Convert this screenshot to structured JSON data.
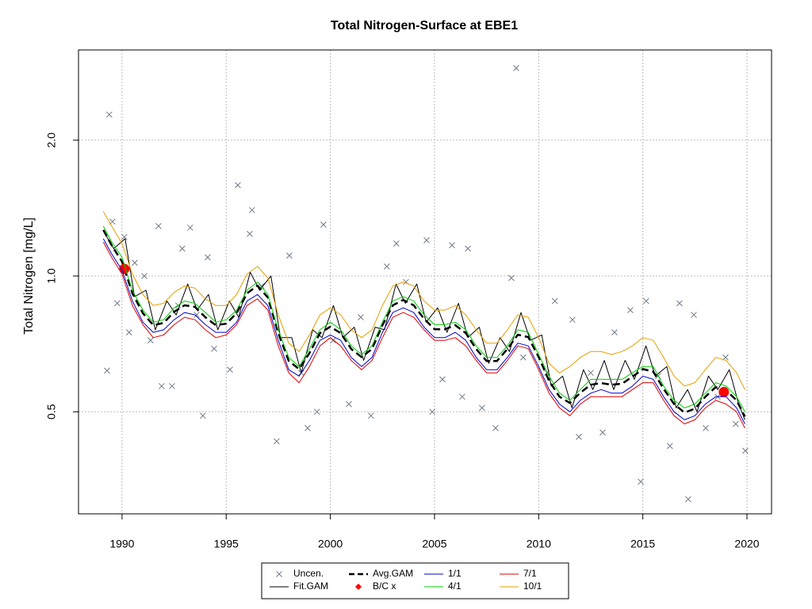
{
  "chart_data": {
    "type": "line",
    "title": "Total Nitrogen-Surface at EBE1",
    "y_label": "Total Nitrogen [mg/L]",
    "xlim": [
      1987.91,
      2021.18
    ],
    "xticks": [
      1990,
      1995,
      2000,
      2005,
      2010,
      2015,
      2020
    ],
    "ylim": [
      0.297,
      3.17
    ],
    "ylog": true,
    "yticks": [
      0.5,
      {
        "value": 1,
        "label": "1.0"
      },
      {
        "value": 2,
        "label": "2.0"
      }
    ],
    "grid": true,
    "legend": "bottom",
    "series": [
      {
        "name": "Uncen.",
        "type": "scatter",
        "marker": "x",
        "color": "#707a88",
        "x": [
          1989.28,
          1989.39,
          1989.54,
          1989.77,
          1990.11,
          1990.34,
          1990.61,
          1991.07,
          1991.37,
          1991.75,
          1991.9,
          1992.4,
          1992.7,
          1992.89,
          1993.27,
          1993.58,
          1993.88,
          1994.11,
          1994.42,
          1995.18,
          1995.56,
          1996.13,
          1996.24,
          1996.7,
          1997.42,
          1998.03,
          1998.6,
          1998.91,
          1999.36,
          1999.67,
          2000.13,
          2000.89,
          2001.46,
          2001.95,
          2002.71,
          2003.17,
          2003.63,
          2004.62,
          2004.89,
          2005.38,
          2005.84,
          2006.33,
          2006.6,
          2007.28,
          2007.93,
          2008.69,
          2008.92,
          2009.26,
          2010.4,
          2010.78,
          2011.62,
          2011.93,
          2012.5,
          2013.07,
          2013.64,
          2014.4,
          2014.9,
          2015.16,
          2015.73,
          2016.3,
          2016.76,
          2017.18,
          2017.45,
          2018.02,
          2018.59,
          2018.97,
          2019.46,
          2019.92
        ],
        "values": [
          0.617,
          2.28,
          1.32,
          0.87,
          1.22,
          0.75,
          1.07,
          1.0,
          0.72,
          1.29,
          0.57,
          0.57,
          0.86,
          1.15,
          1.28,
          0.82,
          0.49,
          1.1,
          0.69,
          0.62,
          1.59,
          1.24,
          1.4,
          0.95,
          0.43,
          1.11,
          0.61,
          0.46,
          0.5,
          1.3,
          0.72,
          0.52,
          0.81,
          0.49,
          1.05,
          1.18,
          0.97,
          1.2,
          0.5,
          0.59,
          1.17,
          0.54,
          1.15,
          0.51,
          0.46,
          0.99,
          2.89,
          0.66,
          0.61,
          0.88,
          0.8,
          0.44,
          0.61,
          0.45,
          0.75,
          0.84,
          0.35,
          0.88,
          0.6,
          0.42,
          0.87,
          0.32,
          0.82,
          0.46,
          0.54,
          0.66,
          0.47,
          0.41
        ]
      },
      {
        "name": "Fit.GAM",
        "type": "line",
        "color": "#000000",
        "width": 1,
        "x": [
          1989.1,
          1989.6,
          1990.15,
          1990.6,
          1991.15,
          1991.6,
          1992.15,
          1992.6,
          1993.15,
          1993.6,
          1994.15,
          1994.6,
          1995.15,
          1995.6,
          1996.15,
          1996.6,
          1997.15,
          1997.6,
          1998.15,
          1998.6,
          1999.15,
          1999.6,
          2000.15,
          2000.6,
          2001.15,
          2001.6,
          2002.15,
          2002.6,
          2003.15,
          2003.6,
          2004.15,
          2004.6,
          2005.15,
          2005.6,
          2006.15,
          2006.6,
          2007.15,
          2007.6,
          2008.15,
          2008.6,
          2009.15,
          2009.6,
          2010.15,
          2010.6,
          2011.15,
          2011.6,
          2012.15,
          2012.6,
          2013.15,
          2013.6,
          2014.15,
          2014.6,
          2015.15,
          2015.6,
          2016.15,
          2016.6,
          2017.15,
          2017.6,
          2018.15,
          2018.6,
          2019.15,
          2019.6,
          2019.9
        ],
        "values": [
          1.26,
          1.15,
          1.21,
          0.9,
          0.93,
          0.76,
          0.88,
          0.82,
          0.96,
          0.84,
          0.91,
          0.76,
          0.88,
          0.81,
          1.02,
          0.93,
          1.0,
          0.73,
          0.73,
          0.61,
          0.76,
          0.73,
          0.86,
          0.73,
          0.77,
          0.65,
          0.77,
          0.76,
          0.96,
          0.87,
          0.96,
          0.79,
          0.85,
          0.75,
          0.87,
          0.73,
          0.77,
          0.64,
          0.73,
          0.68,
          0.83,
          0.72,
          0.74,
          0.57,
          0.6,
          0.51,
          0.62,
          0.56,
          0.65,
          0.56,
          0.65,
          0.59,
          0.7,
          0.6,
          0.63,
          0.51,
          0.56,
          0.5,
          0.6,
          0.56,
          0.62,
          0.52,
          0.48
        ]
      },
      {
        "name": "Avg.GAM",
        "type": "line",
        "dash": true,
        "color": "#000000",
        "width": 2.5,
        "x": [
          1989.1,
          1989.5,
          1990,
          1990.5,
          1991,
          1991.5,
          1992,
          1992.5,
          1993,
          1993.5,
          1994,
          1994.5,
          1995,
          1995.5,
          1996,
          1996.5,
          1997,
          1997.5,
          1998,
          1998.5,
          1999,
          1999.5,
          2000,
          2000.5,
          2001,
          2001.5,
          2002,
          2002.5,
          2003,
          2003.5,
          2004,
          2004.5,
          2005,
          2005.5,
          2006,
          2006.5,
          2007,
          2007.5,
          2008,
          2008.5,
          2009,
          2009.5,
          2010,
          2010.5,
          2011,
          2011.5,
          2012,
          2012.5,
          2013,
          2013.5,
          2014,
          2014.5,
          2015,
          2015.5,
          2016,
          2016.5,
          2017,
          2017.5,
          2018,
          2018.5,
          2019,
          2019.5,
          2019.9
        ],
        "values": [
          1.265,
          1.17,
          1.076,
          0.915,
          0.827,
          0.778,
          0.787,
          0.833,
          0.861,
          0.854,
          0.81,
          0.778,
          0.784,
          0.827,
          0.915,
          0.952,
          0.896,
          0.747,
          0.648,
          0.622,
          0.675,
          0.747,
          0.772,
          0.747,
          0.689,
          0.661,
          0.689,
          0.778,
          0.861,
          0.885,
          0.861,
          0.804,
          0.762,
          0.762,
          0.778,
          0.747,
          0.689,
          0.648,
          0.648,
          0.689,
          0.741,
          0.732,
          0.661,
          0.586,
          0.54,
          0.523,
          0.551,
          0.574,
          0.579,
          0.574,
          0.577,
          0.598,
          0.622,
          0.614,
          0.562,
          0.52,
          0.498,
          0.508,
          0.54,
          0.567,
          0.558,
          0.53,
          0.488
        ]
      },
      {
        "name": "B/C x",
        "type": "scatter",
        "marker": "circle",
        "color": "#ff0000",
        "x": [
          1990.11,
          2018.89
        ],
        "values": [
          1.037,
          0.553
        ]
      },
      {
        "name": "1/1",
        "type": "line",
        "color": "#0000cc",
        "width": 1,
        "x": [
          1989.1,
          1989.5,
          1990,
          1990.5,
          1991,
          1991.5,
          1992,
          1992.5,
          1993,
          1993.5,
          1994,
          1994.5,
          1995,
          1995.5,
          1996,
          1996.5,
          1997,
          1997.5,
          1998,
          1998.5,
          1999,
          1999.5,
          2000,
          2000.5,
          2001,
          2001.5,
          2002,
          2002.5,
          2003,
          2003.5,
          2004,
          2004.5,
          2005,
          2005.5,
          2006,
          2006.5,
          2007,
          2007.5,
          2008,
          2008.5,
          2009,
          2009.5,
          2010,
          2010.5,
          2011,
          2011.5,
          2012,
          2012.5,
          2013,
          2013.5,
          2014,
          2014.5,
          2015,
          2015.5,
          2016,
          2016.5,
          2017,
          2017.5,
          2018,
          2018.5,
          2019,
          2019.5,
          2019.9
        ],
        "values": [
          1.21,
          1.12,
          1.03,
          0.88,
          0.79,
          0.75,
          0.76,
          0.8,
          0.83,
          0.82,
          0.78,
          0.75,
          0.75,
          0.79,
          0.88,
          0.91,
          0.86,
          0.72,
          0.62,
          0.6,
          0.65,
          0.72,
          0.74,
          0.72,
          0.66,
          0.63,
          0.66,
          0.75,
          0.83,
          0.85,
          0.83,
          0.77,
          0.73,
          0.73,
          0.75,
          0.72,
          0.66,
          0.62,
          0.62,
          0.66,
          0.71,
          0.7,
          0.63,
          0.56,
          0.52,
          0.5,
          0.53,
          0.55,
          0.56,
          0.55,
          0.55,
          0.57,
          0.6,
          0.59,
          0.54,
          0.5,
          0.48,
          0.49,
          0.52,
          0.54,
          0.54,
          0.51,
          0.47
        ]
      },
      {
        "name": "4/1",
        "type": "line",
        "color": "#00cc00",
        "width": 1,
        "x": [
          1989.1,
          1989.5,
          1990,
          1990.5,
          1991,
          1991.5,
          1992,
          1992.5,
          1993,
          1993.5,
          1994,
          1994.5,
          1995,
          1995.5,
          1996,
          1996.5,
          1997,
          1997.5,
          1998,
          1998.5,
          1999,
          1999.5,
          2000,
          2000.5,
          2001,
          2001.5,
          2002,
          2002.5,
          2003,
          2003.5,
          2004,
          2004.5,
          2005,
          2005.5,
          2006,
          2006.5,
          2007,
          2007.5,
          2008,
          2008.5,
          2009,
          2009.5,
          2010,
          2010.5,
          2011,
          2011.5,
          2012,
          2012.5,
          2013,
          2013.5,
          2014,
          2014.5,
          2015,
          2015.5,
          2016,
          2016.5,
          2017,
          2017.5,
          2018,
          2018.5,
          2019,
          2019.5,
          2019.9
        ],
        "values": [
          1.29,
          1.19,
          1.1,
          0.93,
          0.84,
          0.79,
          0.8,
          0.85,
          0.88,
          0.87,
          0.83,
          0.79,
          0.8,
          0.84,
          0.93,
          0.97,
          0.91,
          0.76,
          0.66,
          0.63,
          0.69,
          0.76,
          0.79,
          0.76,
          0.7,
          0.67,
          0.7,
          0.79,
          0.88,
          0.9,
          0.88,
          0.82,
          0.78,
          0.78,
          0.79,
          0.76,
          0.7,
          0.66,
          0.66,
          0.7,
          0.76,
          0.75,
          0.67,
          0.6,
          0.55,
          0.53,
          0.56,
          0.59,
          0.59,
          0.59,
          0.59,
          0.61,
          0.63,
          0.63,
          0.57,
          0.53,
          0.51,
          0.52,
          0.55,
          0.58,
          0.57,
          0.54,
          0.5
        ]
      },
      {
        "name": "7/1",
        "type": "line",
        "color": "#dd0000",
        "width": 1,
        "x": [
          1989.1,
          1989.5,
          1990,
          1990.5,
          1991,
          1991.5,
          1992,
          1992.5,
          1993,
          1993.5,
          1994,
          1994.5,
          1995,
          1995.5,
          1996,
          1996.5,
          1997,
          1997.5,
          1998,
          1998.5,
          1999,
          1999.5,
          2000,
          2000.5,
          2001,
          2001.5,
          2002,
          2002.5,
          2003,
          2003.5,
          2004,
          2004.5,
          2005,
          2005.5,
          2006,
          2006.5,
          2007,
          2007.5,
          2008,
          2008.5,
          2009,
          2009.5,
          2010,
          2010.5,
          2011,
          2011.5,
          2012,
          2012.5,
          2013,
          2013.5,
          2014,
          2014.5,
          2015,
          2015.5,
          2016,
          2016.5,
          2017,
          2017.5,
          2018,
          2018.5,
          2019,
          2019.5,
          2019.9
        ],
        "values": [
          1.19,
          1.1,
          1.01,
          0.86,
          0.78,
          0.73,
          0.74,
          0.78,
          0.81,
          0.8,
          0.76,
          0.73,
          0.74,
          0.78,
          0.86,
          0.89,
          0.84,
          0.7,
          0.61,
          0.58,
          0.63,
          0.7,
          0.73,
          0.7,
          0.65,
          0.62,
          0.65,
          0.73,
          0.81,
          0.83,
          0.81,
          0.76,
          0.72,
          0.72,
          0.73,
          0.7,
          0.65,
          0.61,
          0.61,
          0.65,
          0.7,
          0.69,
          0.62,
          0.55,
          0.51,
          0.49,
          0.52,
          0.54,
          0.54,
          0.54,
          0.54,
          0.56,
          0.58,
          0.58,
          0.53,
          0.49,
          0.47,
          0.48,
          0.51,
          0.53,
          0.52,
          0.5,
          0.46
        ]
      },
      {
        "name": "10/1",
        "type": "line",
        "color": "#e69f00",
        "width": 1,
        "x": [
          1989.1,
          1989.5,
          1990,
          1990.5,
          1991,
          1991.5,
          1992,
          1992.5,
          1993,
          1993.5,
          1994,
          1994.5,
          1995,
          1995.5,
          1996,
          1996.5,
          1997,
          1997.5,
          1998,
          1998.5,
          1999,
          1999.5,
          2000,
          2000.5,
          2001,
          2001.5,
          2002,
          2002.5,
          2003,
          2003.5,
          2004,
          2004.5,
          2005,
          2005.5,
          2006,
          2006.5,
          2007,
          2007.5,
          2008,
          2008.5,
          2009,
          2009.5,
          2010,
          2010.5,
          2011,
          2011.5,
          2012,
          2012.5,
          2013,
          2013.5,
          2014,
          2014.5,
          2015,
          2015.5,
          2016,
          2016.5,
          2017,
          2017.5,
          2018,
          2018.5,
          2019,
          2019.5,
          2019.9
        ],
        "values": [
          1.39,
          1.29,
          1.18,
          1.01,
          0.91,
          0.86,
          0.87,
          0.92,
          0.95,
          0.94,
          0.89,
          0.86,
          0.86,
          0.91,
          1.01,
          1.05,
          0.99,
          0.82,
          0.71,
          0.68,
          0.74,
          0.82,
          0.85,
          0.82,
          0.76,
          0.73,
          0.76,
          0.86,
          0.95,
          0.97,
          0.95,
          0.88,
          0.84,
          0.84,
          0.86,
          0.82,
          0.76,
          0.71,
          0.71,
          0.76,
          0.82,
          0.81,
          0.73,
          0.64,
          0.61,
          0.63,
          0.66,
          0.68,
          0.68,
          0.67,
          0.68,
          0.7,
          0.73,
          0.72,
          0.66,
          0.6,
          0.57,
          0.58,
          0.62,
          0.66,
          0.65,
          0.61,
          0.56
        ]
      }
    ]
  }
}
